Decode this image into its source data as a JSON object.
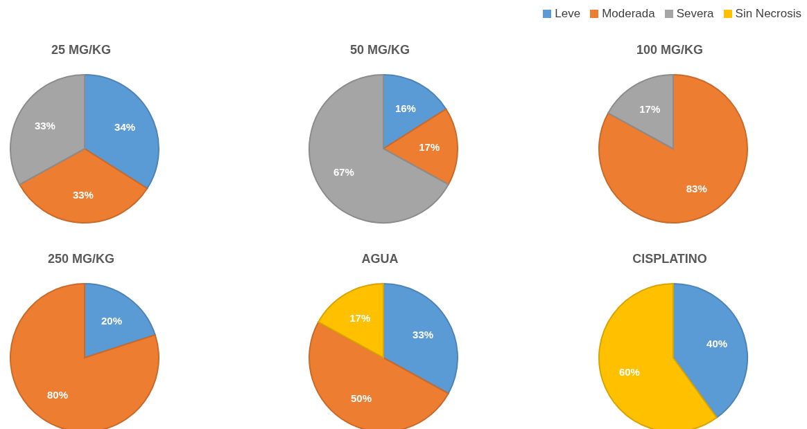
{
  "chart_data": [
    {
      "type": "pie",
      "title": "25 MG/KG",
      "categories": [
        "Leve",
        "Moderada",
        "Severa",
        "Sin Necrosis"
      ],
      "values": [
        34,
        33,
        33,
        0
      ],
      "value_labels": [
        "34%",
        "33%",
        "33%",
        null
      ],
      "colors": [
        "#5b9bd5",
        "#ed7d31",
        "#a5a5a5",
        "#ffc000"
      ],
      "legend": "top right"
    },
    {
      "type": "pie",
      "title": "50 MG/KG",
      "categories": [
        null,
        null,
        null
      ],
      "values": [
        16,
        17,
        67
      ],
      "value_labels": [
        "16%",
        "17%",
        "67%"
      ],
      "colors": [
        "#5b9bd5",
        "#ed7d31",
        "#a5a5a5"
      ]
    },
    {
      "type": "pie",
      "title": "100 MG/KG",
      "categories": [
        null,
        null
      ],
      "values": [
        83,
        17
      ],
      "value_labels": [
        "83%",
        "17%"
      ],
      "colors": [
        "#ed7d31",
        "#a5a5a5"
      ]
    },
    {
      "type": "pie",
      "title": "250 MG/KG",
      "categories": [
        null,
        null
      ],
      "values": [
        20,
        80
      ],
      "value_labels": [
        "20%",
        "80%"
      ],
      "colors": [
        "#5b9bd5",
        "#ed7d31"
      ]
    },
    {
      "type": "pie",
      "title": "AGUA",
      "categories": [
        null,
        null,
        null
      ],
      "values": [
        33,
        50,
        17
      ],
      "value_labels": [
        "33%",
        "50%",
        "17%"
      ],
      "colors": [
        "#5b9bd5",
        "#ed7d31",
        "#ffc000"
      ]
    },
    {
      "type": "pie",
      "title": "CISPLATINO",
      "categories": [
        null,
        null
      ],
      "values": [
        40,
        60
      ],
      "value_labels": [
        "40%",
        "60%"
      ],
      "colors": [
        "#5b9bd5",
        "#ffc000"
      ]
    }
  ]
}
